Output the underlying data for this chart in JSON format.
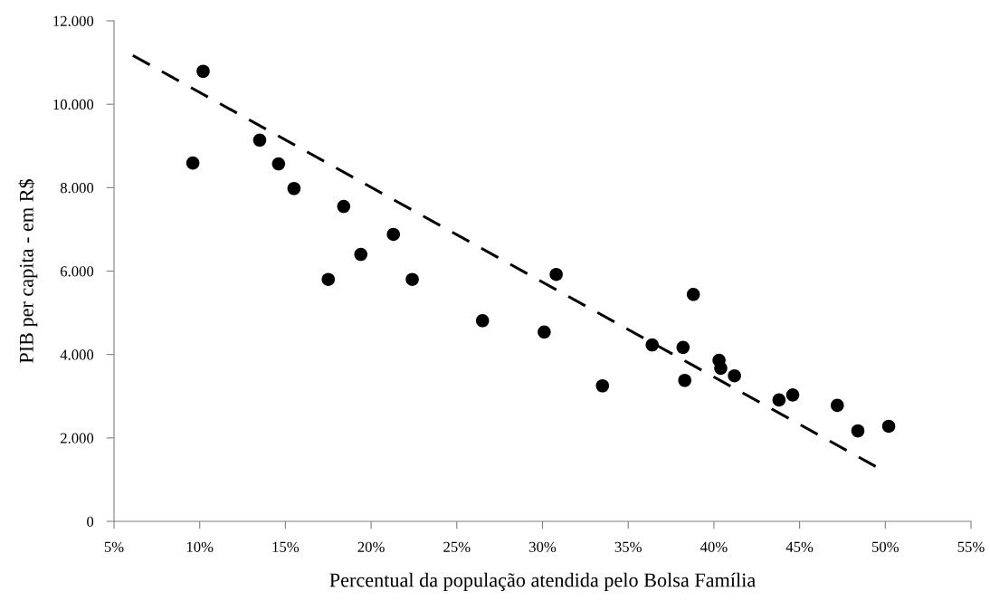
{
  "chart_data": {
    "type": "scatter",
    "xlabel": "Percentual da população atendida pelo Bolsa Família",
    "ylabel": "PIB per capita - em R$",
    "xlim": [
      5,
      55
    ],
    "ylim": [
      0,
      12000
    ],
    "xticks": [
      {
        "value": 5,
        "label": "5%"
      },
      {
        "value": 10,
        "label": "10%"
      },
      {
        "value": 15,
        "label": "15%"
      },
      {
        "value": 20,
        "label": "20%"
      },
      {
        "value": 25,
        "label": "25%"
      },
      {
        "value": 30,
        "label": "30%"
      },
      {
        "value": 35,
        "label": "35%"
      },
      {
        "value": 40,
        "label": "40%"
      },
      {
        "value": 45,
        "label": "45%"
      },
      {
        "value": 50,
        "label": "50%"
      },
      {
        "value": 55,
        "label": "55%"
      }
    ],
    "yticks": [
      {
        "value": 0,
        "label": "0"
      },
      {
        "value": 2000,
        "label": "2.000"
      },
      {
        "value": 4000,
        "label": "4.000"
      },
      {
        "value": 6000,
        "label": "6.000"
      },
      {
        "value": 8000,
        "label": "8.000"
      },
      {
        "value": 10000,
        "label": "10.000"
      },
      {
        "value": 12000,
        "label": "12.000"
      }
    ],
    "grid": false,
    "series": [
      {
        "color": "#000000",
        "marker": "circle",
        "x": [
          10.2,
          9.6,
          13.5,
          14.6,
          15.5,
          18.4,
          21.3,
          19.4,
          17.5,
          22.4,
          26.5,
          30.8,
          30.1,
          38.8,
          36.4,
          38.2,
          38.3,
          33.5,
          40.3,
          40.4,
          41.2,
          43.8,
          44.6,
          47.2,
          48.4,
          50.2
        ],
        "values": [
          10790,
          8590,
          9140,
          8570,
          7980,
          7550,
          6880,
          6400,
          5800,
          5800,
          4810,
          5920,
          4540,
          5440,
          4230,
          4170,
          3380,
          3250,
          3860,
          3670,
          3490,
          2910,
          3030,
          2780,
          2170,
          2280
        ]
      },
      {
        "type": "line",
        "color": "#000000",
        "line_style": "dashed",
        "x": [
          6.1,
          49.6
        ],
        "values": [
          11170,
          1280
        ]
      }
    ]
  }
}
